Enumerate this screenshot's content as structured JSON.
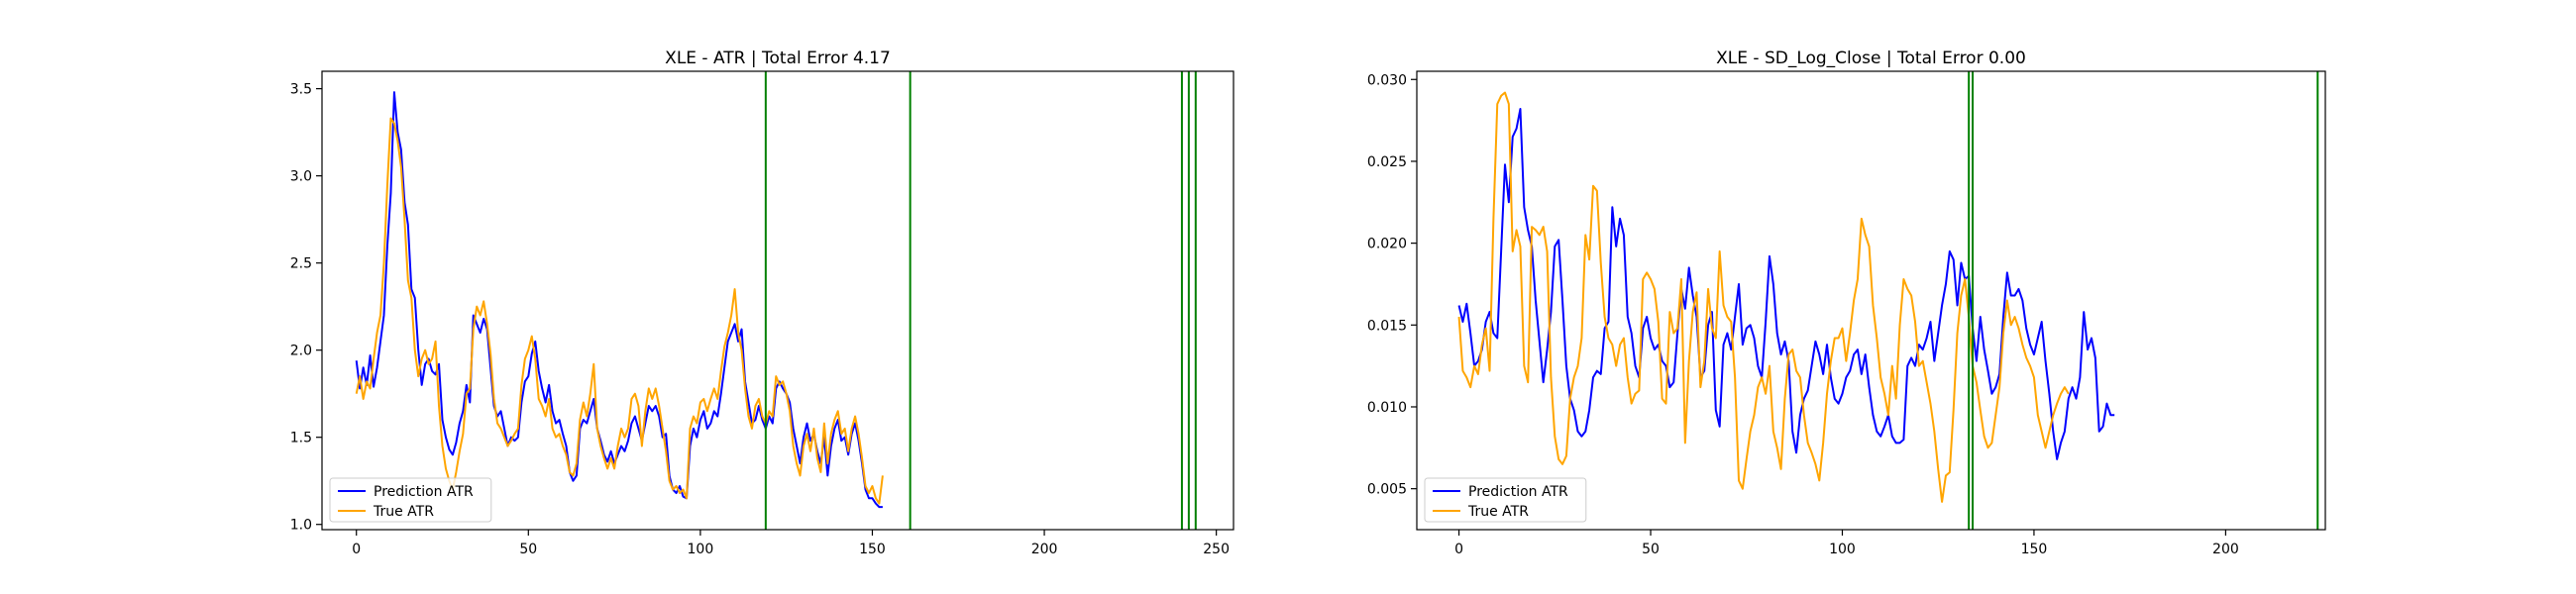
{
  "chart_data": [
    {
      "type": "line",
      "title": "XLE - ATR | Total Error 4.17",
      "xlabel": "",
      "ylabel": "",
      "xlim": [
        -10,
        255
      ],
      "ylim": [
        0.97,
        3.6
      ],
      "xticks": [
        0,
        50,
        100,
        150,
        200,
        250
      ],
      "yticks": [
        1.0,
        1.5,
        2.0,
        2.5,
        3.0,
        3.5
      ],
      "ytick_decimals": 1,
      "grid": false,
      "legend_position": "lower left",
      "vlines": [
        119,
        161,
        240,
        242,
        244
      ],
      "vline_color": "#008000",
      "series": [
        {
          "name": "Prediction ATR",
          "color": "#0000ff",
          "x_start": 0,
          "values": [
            1.94,
            1.78,
            1.9,
            1.8,
            1.97,
            1.79,
            1.9,
            2.05,
            2.2,
            2.6,
            2.9,
            3.48,
            3.25,
            3.15,
            2.85,
            2.72,
            2.35,
            2.3,
            2.0,
            1.8,
            1.92,
            1.95,
            1.88,
            1.86,
            1.92,
            1.6,
            1.5,
            1.43,
            1.4,
            1.47,
            1.58,
            1.65,
            1.8,
            1.7,
            2.2,
            2.15,
            2.1,
            2.18,
            2.12,
            1.9,
            1.68,
            1.62,
            1.65,
            1.55,
            1.45,
            1.5,
            1.48,
            1.5,
            1.7,
            1.82,
            1.85,
            1.98,
            2.05,
            1.88,
            1.78,
            1.7,
            1.8,
            1.65,
            1.58,
            1.6,
            1.52,
            1.45,
            1.3,
            1.25,
            1.28,
            1.55,
            1.6,
            1.58,
            1.65,
            1.72,
            1.55,
            1.48,
            1.4,
            1.36,
            1.42,
            1.35,
            1.4,
            1.45,
            1.42,
            1.48,
            1.58,
            1.62,
            1.55,
            1.48,
            1.58,
            1.68,
            1.65,
            1.68,
            1.62,
            1.5,
            1.52,
            1.28,
            1.2,
            1.18,
            1.22,
            1.16,
            1.15,
            1.45,
            1.55,
            1.5,
            1.6,
            1.65,
            1.55,
            1.58,
            1.65,
            1.62,
            1.75,
            1.9,
            2.05,
            2.1,
            2.15,
            2.05,
            2.12,
            1.82,
            1.7,
            1.58,
            1.6,
            1.68,
            1.6,
            1.55,
            1.62,
            1.58,
            1.78,
            1.82,
            1.78,
            1.75,
            1.7,
            1.55,
            1.45,
            1.35,
            1.5,
            1.58,
            1.48,
            1.52,
            1.42,
            1.35,
            1.5,
            1.28,
            1.45,
            1.55,
            1.6,
            1.48,
            1.5,
            1.4,
            1.52,
            1.58,
            1.48,
            1.35,
            1.2,
            1.15,
            1.15,
            1.12,
            1.1,
            1.1
          ]
        },
        {
          "name": "True ATR",
          "color": "#ffa500",
          "x_start": 0,
          "values": [
            1.75,
            1.85,
            1.72,
            1.82,
            1.78,
            1.95,
            2.1,
            2.2,
            2.5,
            2.95,
            3.33,
            3.3,
            3.2,
            3.05,
            2.75,
            2.4,
            2.3,
            2.0,
            1.85,
            1.95,
            2.0,
            1.92,
            1.95,
            2.05,
            1.68,
            1.45,
            1.32,
            1.25,
            1.2,
            1.3,
            1.42,
            1.52,
            1.75,
            1.78,
            2.12,
            2.25,
            2.2,
            2.28,
            2.15,
            1.98,
            1.72,
            1.58,
            1.55,
            1.5,
            1.45,
            1.48,
            1.52,
            1.55,
            1.8,
            1.95,
            2.0,
            2.08,
            1.95,
            1.72,
            1.68,
            1.62,
            1.72,
            1.55,
            1.5,
            1.52,
            1.45,
            1.4,
            1.3,
            1.28,
            1.35,
            1.6,
            1.7,
            1.62,
            1.75,
            1.92,
            1.55,
            1.45,
            1.38,
            1.32,
            1.38,
            1.32,
            1.45,
            1.55,
            1.5,
            1.55,
            1.72,
            1.75,
            1.68,
            1.45,
            1.65,
            1.78,
            1.72,
            1.78,
            1.68,
            1.55,
            1.42,
            1.25,
            1.2,
            1.22,
            1.18,
            1.2,
            1.15,
            1.55,
            1.62,
            1.58,
            1.7,
            1.72,
            1.65,
            1.72,
            1.78,
            1.72,
            1.88,
            2.02,
            2.1,
            2.2,
            2.35,
            2.1,
            2.0,
            1.78,
            1.62,
            1.55,
            1.68,
            1.72,
            1.62,
            1.58,
            1.65,
            1.62,
            1.85,
            1.8,
            1.82,
            1.75,
            1.65,
            1.45,
            1.35,
            1.28,
            1.45,
            1.52,
            1.42,
            1.55,
            1.38,
            1.3,
            1.58,
            1.35,
            1.52,
            1.6,
            1.65,
            1.52,
            1.55,
            1.42,
            1.55,
            1.62,
            1.52,
            1.38,
            1.22,
            1.18,
            1.22,
            1.15,
            1.12,
            1.28
          ]
        }
      ]
    },
    {
      "type": "line",
      "title": "XLE - SD_Log_Close | Total Error 0.00",
      "xlabel": "",
      "ylabel": "",
      "xlim": [
        -11,
        226
      ],
      "ylim": [
        0.0025,
        0.0305
      ],
      "xticks": [
        0,
        50,
        100,
        150,
        200
      ],
      "yticks": [
        0.005,
        0.01,
        0.015,
        0.02,
        0.025,
        0.03
      ],
      "ytick_decimals": 3,
      "grid": false,
      "legend_position": "lower left",
      "vlines": [
        133,
        134,
        224
      ],
      "vline_color": "#008000",
      "series": [
        {
          "name": "Prediction ATR",
          "color": "#0000ff",
          "x_start": 0,
          "values": [
            0.0162,
            0.0152,
            0.0163,
            0.0145,
            0.0125,
            0.0128,
            0.0135,
            0.0152,
            0.0158,
            0.0145,
            0.0142,
            0.0195,
            0.0248,
            0.0225,
            0.0265,
            0.027,
            0.0282,
            0.0222,
            0.0208,
            0.0198,
            0.0165,
            0.014,
            0.0115,
            0.0135,
            0.0158,
            0.0198,
            0.0202,
            0.0165,
            0.0125,
            0.0105,
            0.0098,
            0.0085,
            0.0082,
            0.0085,
            0.0098,
            0.0118,
            0.0122,
            0.012,
            0.0148,
            0.0152,
            0.0222,
            0.0198,
            0.0215,
            0.0205,
            0.0155,
            0.0145,
            0.0125,
            0.0118,
            0.0148,
            0.0155,
            0.0142,
            0.0135,
            0.0138,
            0.0128,
            0.0125,
            0.0112,
            0.0115,
            0.0145,
            0.0172,
            0.016,
            0.0185,
            0.0168,
            0.0155,
            0.0118,
            0.0122,
            0.015,
            0.0158,
            0.0098,
            0.0088,
            0.0138,
            0.0145,
            0.0135,
            0.0155,
            0.0175,
            0.0138,
            0.0148,
            0.015,
            0.0142,
            0.0125,
            0.0118,
            0.0152,
            0.0192,
            0.0175,
            0.0145,
            0.0132,
            0.014,
            0.0128,
            0.0085,
            0.0072,
            0.0095,
            0.0105,
            0.011,
            0.0125,
            0.014,
            0.0132,
            0.012,
            0.0138,
            0.0118,
            0.0105,
            0.0102,
            0.0108,
            0.0118,
            0.0122,
            0.0132,
            0.0135,
            0.012,
            0.0132,
            0.0112,
            0.0095,
            0.0085,
            0.0082,
            0.0088,
            0.0095,
            0.0082,
            0.0078,
            0.0078,
            0.008,
            0.0125,
            0.013,
            0.0125,
            0.0138,
            0.0135,
            0.0142,
            0.0152,
            0.0128,
            0.0145,
            0.0162,
            0.0175,
            0.0195,
            0.019,
            0.0162,
            0.0188,
            0.0178,
            0.018,
            0.0148,
            0.0128,
            0.0155,
            0.0135,
            0.0122,
            0.0108,
            0.0112,
            0.012,
            0.0155,
            0.0182,
            0.0168,
            0.0168,
            0.0172,
            0.0165,
            0.0148,
            0.0138,
            0.0132,
            0.0142,
            0.0152,
            0.0128,
            0.0108,
            0.0085,
            0.0068,
            0.0078,
            0.0085,
            0.0105,
            0.0112,
            0.0105,
            0.0118,
            0.0158,
            0.0135,
            0.0142,
            0.013,
            0.0085,
            0.0088,
            0.0102,
            0.0095,
            0.0095
          ]
        },
        {
          "name": "True ATR",
          "color": "#ffa500",
          "x_start": 0,
          "values": [
            0.0155,
            0.0122,
            0.0118,
            0.0112,
            0.0125,
            0.012,
            0.0138,
            0.0148,
            0.0122,
            0.0215,
            0.0285,
            0.029,
            0.0292,
            0.0285,
            0.0195,
            0.0208,
            0.0198,
            0.0125,
            0.0115,
            0.021,
            0.0208,
            0.0205,
            0.021,
            0.0195,
            0.0118,
            0.0082,
            0.0068,
            0.0065,
            0.007,
            0.0105,
            0.0118,
            0.0125,
            0.0142,
            0.0205,
            0.019,
            0.0235,
            0.0232,
            0.0188,
            0.0155,
            0.0142,
            0.0138,
            0.0125,
            0.0138,
            0.0142,
            0.0118,
            0.0102,
            0.0108,
            0.011,
            0.0178,
            0.0182,
            0.0178,
            0.0172,
            0.0152,
            0.0105,
            0.0102,
            0.0158,
            0.0145,
            0.0148,
            0.0178,
            0.0078,
            0.0128,
            0.0158,
            0.017,
            0.0112,
            0.0128,
            0.0172,
            0.0148,
            0.0142,
            0.0195,
            0.0162,
            0.0155,
            0.0152,
            0.0118,
            0.0055,
            0.005,
            0.0068,
            0.0085,
            0.0095,
            0.0112,
            0.0118,
            0.0108,
            0.0125,
            0.0085,
            0.0075,
            0.0062,
            0.0105,
            0.0132,
            0.0135,
            0.0122,
            0.0118,
            0.0095,
            0.0078,
            0.0072,
            0.0065,
            0.0055,
            0.0078,
            0.0108,
            0.0128,
            0.0142,
            0.0142,
            0.0148,
            0.0128,
            0.0145,
            0.0165,
            0.0178,
            0.0215,
            0.0205,
            0.0198,
            0.0162,
            0.0142,
            0.0118,
            0.0108,
            0.0095,
            0.0125,
            0.0105,
            0.015,
            0.0178,
            0.0172,
            0.0168,
            0.0152,
            0.0125,
            0.0128,
            0.0115,
            0.0102,
            0.0085,
            0.0062,
            0.0042,
            0.0058,
            0.006,
            0.0098,
            0.0145,
            0.0168,
            0.0178,
            0.0155,
            0.0125,
            0.0115,
            0.0098,
            0.0082,
            0.0075,
            0.0078,
            0.0095,
            0.0112,
            0.0145,
            0.0165,
            0.015,
            0.0155,
            0.0148,
            0.0138,
            0.013,
            0.0125,
            0.0118,
            0.0095,
            0.0085,
            0.0075,
            0.0085,
            0.0095,
            0.0102,
            0.0108,
            0.0112,
            0.0108
          ]
        }
      ]
    }
  ]
}
